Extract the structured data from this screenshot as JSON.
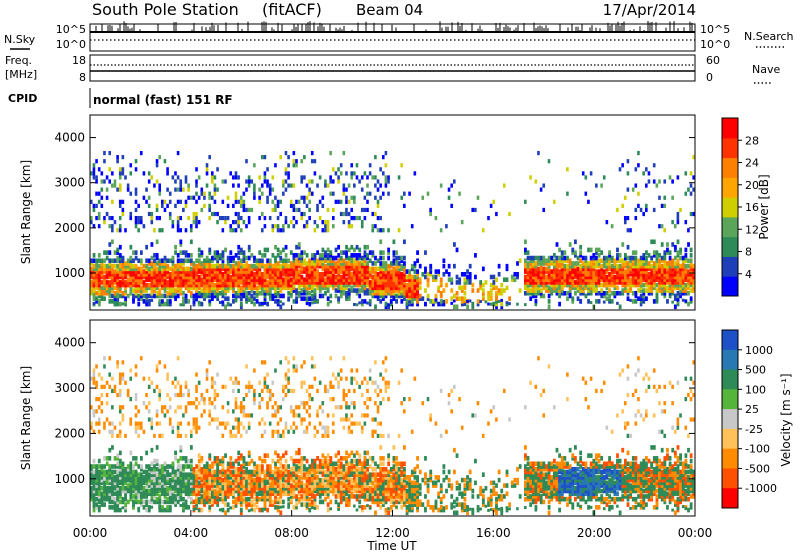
{
  "header": {
    "station": "South Pole Station",
    "mode": "(fitACF)",
    "beam": "Beam 04",
    "date": "17/Apr/2014"
  },
  "status_panels": {
    "nsky_label": "N.Sky",
    "nsearch_label": "N.Search",
    "freq_label_top": "Freq.",
    "freq_label_bottom": "[MHz]",
    "nave_label": "Nave",
    "cpid_label": "CPID",
    "cpid_value": "normal (fast) 151 RF",
    "noise_ticks_left": [
      "10^5",
      "10^0"
    ],
    "noise_ticks_right": [
      "10^5",
      "10^0"
    ],
    "freq_ticks": [
      "18",
      "8"
    ],
    "nave_ticks": [
      "60",
      "0"
    ]
  },
  "colors": {
    "power_scale": [
      "#0000ff",
      "#1f3fb8",
      "#2e8b57",
      "#5aa55a",
      "#cfcf00",
      "#ffa500",
      "#ff7f00",
      "#ff3300",
      "#ff0000"
    ],
    "velocity_scale": [
      "#1e50c8",
      "#2878b4",
      "#2e8b57",
      "#55b53a",
      "#c8c8c8",
      "#ffc15a",
      "#ff8c00",
      "#ff5000",
      "#ff0000"
    ]
  },
  "chart_data": [
    {
      "type": "heatmap",
      "name": "power",
      "xlabel": "Time UT",
      "ylabel": "Slant Range [km]",
      "x_ticks": [
        "00:00",
        "04:00",
        "08:00",
        "12:00",
        "16:00",
        "20:00",
        "00:00"
      ],
      "y_ticks": [
        1000,
        2000,
        3000,
        4000
      ],
      "xlim_hours": [
        0,
        24
      ],
      "ylim_km": [
        180,
        4500
      ],
      "colorbar_label": "Power [dB]",
      "colorbar_ticks": [
        "4",
        "8",
        "12",
        "16",
        "20",
        "24",
        "28"
      ],
      "colorbar_range": [
        0,
        30
      ]
    },
    {
      "type": "heatmap",
      "name": "velocity",
      "xlabel": "Time UT",
      "ylabel": "Slant Range [km]",
      "x_ticks": [
        "00:00",
        "04:00",
        "08:00",
        "12:00",
        "16:00",
        "20:00",
        "00:00"
      ],
      "y_ticks": [
        1000,
        2000,
        3000,
        4000
      ],
      "xlim_hours": [
        0,
        24
      ],
      "ylim_km": [
        180,
        4500
      ],
      "colorbar_label": "Velocity [m s⁻¹]",
      "colorbar_ticks": [
        "1000",
        "500",
        "100",
        "25",
        "-25",
        "-100",
        "-500",
        "-1000"
      ]
    }
  ]
}
